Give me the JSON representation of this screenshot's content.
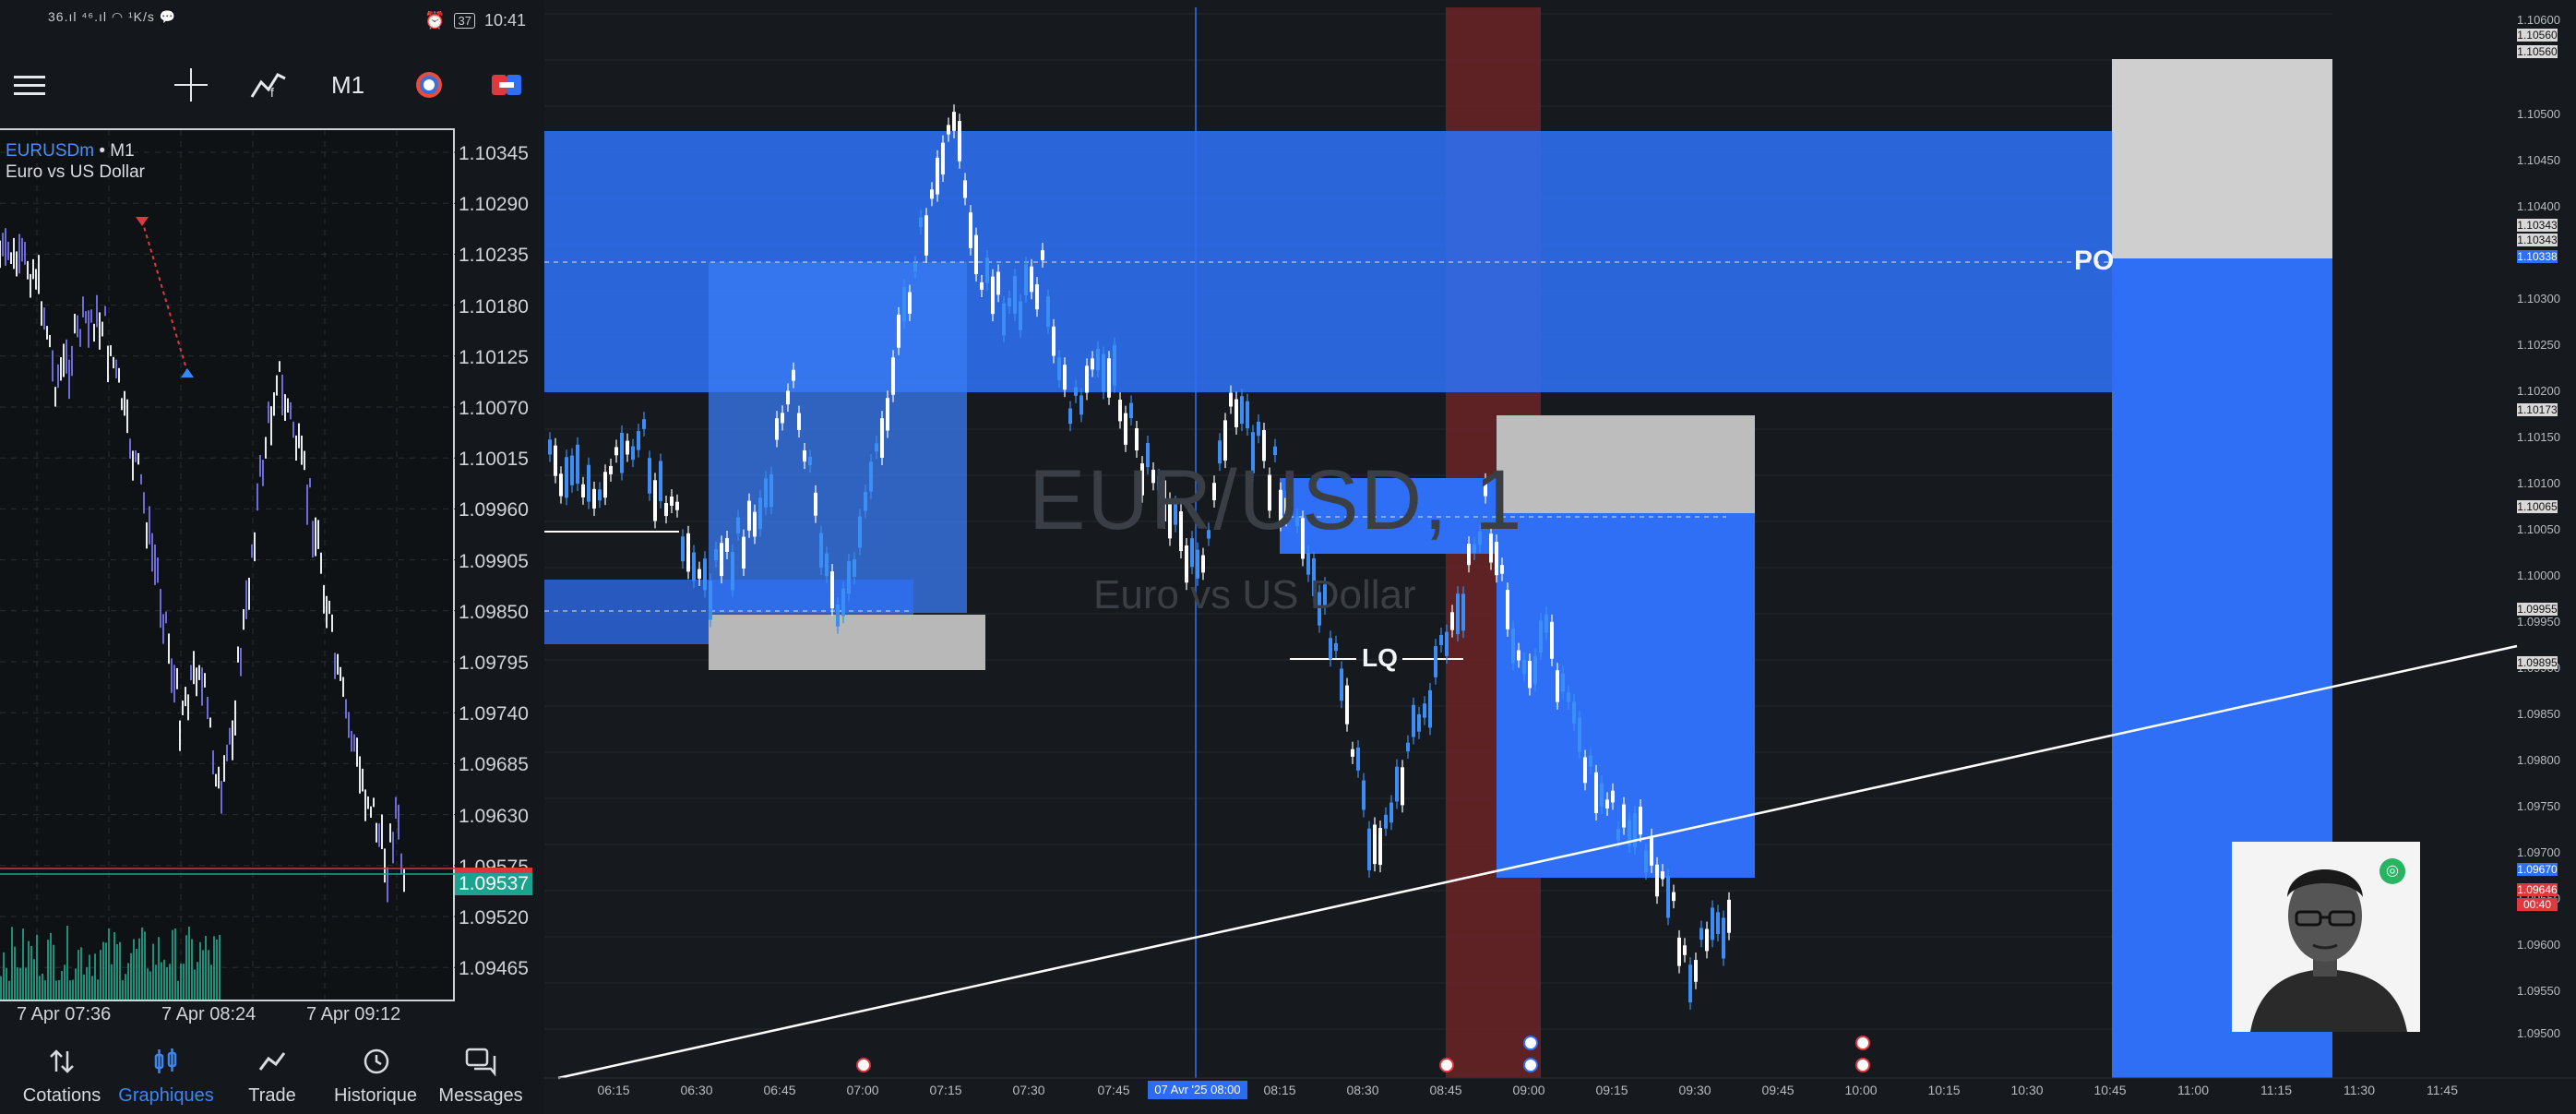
{
  "status": {
    "left_icons": "36.ıl ⁴⁶.ıl ◠ ¹K/s 💬",
    "battery": "37",
    "time": "10:41"
  },
  "toolbar": {
    "timeframe": "M1",
    "icons": [
      "menu-icon",
      "crosshair-icon",
      "indicator-icon",
      "objects-icon",
      "trade-icon"
    ]
  },
  "mini_chart": {
    "symbol": "EURUSDm",
    "separator": " • ",
    "timeframe": "M1",
    "description": "Euro vs US Dollar",
    "price_labels": [
      "1.10345",
      "1.10290",
      "1.10235",
      "1.10180",
      "1.10125",
      "1.10070",
      "1.10015",
      "1.09960",
      "1.09905",
      "1.09850",
      "1.09795",
      "1.09740",
      "1.09685",
      "1.09630",
      "1.09575",
      "1.09520",
      "1.09465"
    ],
    "last_price": "1.09537",
    "time_labels": [
      "7 Apr 07:36",
      "7 Apr 08:24",
      "7 Apr 09:12"
    ],
    "colors": {
      "last_price_bg": "#1aa38d",
      "bid_line": "#d9363e",
      "symbol": "#4c8ff0"
    }
  },
  "bottom_nav": [
    {
      "label": "Cotations",
      "icon": "swap-icon",
      "active": false
    },
    {
      "label": "Graphiques",
      "icon": "candles-icon",
      "active": true
    },
    {
      "label": "Trade",
      "icon": "trend-icon",
      "active": false
    },
    {
      "label": "Historique",
      "icon": "history-icon",
      "active": false
    },
    {
      "label": "Messages",
      "icon": "messages-icon",
      "active": false
    }
  ],
  "main_chart": {
    "watermark_symbol": "EUR/USD, 1",
    "watermark_name": "Euro vs US Dollar",
    "annotations": {
      "lq": "LQ",
      "po": "PO"
    },
    "price_labels": [
      "1.10600",
      "1.10500",
      "1.10450",
      "1.10400",
      "1.10300",
      "1.10250",
      "1.10200",
      "1.10150",
      "1.10100",
      "1.10050",
      "1.10000",
      "1.09950",
      "1.09900",
      "1.09850",
      "1.09800",
      "1.09750",
      "1.09700",
      "1.09650",
      "1.09600",
      "1.09550",
      "1.09500"
    ],
    "price_tags": [
      {
        "text": "1.10560",
        "color": "#d9d9d9"
      },
      {
        "text": "1.10560",
        "color": "#d9d9d9"
      },
      {
        "text": "1.10343",
        "color": "#d9d9d9"
      },
      {
        "text": "1.10343",
        "color": "#d9d9d9"
      },
      {
        "text": "1.10338",
        "color": "#2f6ff5"
      },
      {
        "text": "1.10173",
        "color": "#d9d9d9"
      },
      {
        "text": "1.10065",
        "color": "#d9d9d9"
      },
      {
        "text": "1.09955",
        "color": "#d9d9d9"
      },
      {
        "text": "1.09895",
        "color": "#d9d9d9"
      },
      {
        "text": "1.09670",
        "color": "#2f6ff5"
      },
      {
        "text": "1.09646",
        "color": "#e0383f"
      },
      {
        "text": "00:40",
        "color": "#e0383f"
      }
    ],
    "time_labels": [
      "06:15",
      "06:30",
      "06:45",
      "07:00",
      "07:15",
      "07:30",
      "07:45",
      "08:15",
      "08:30",
      "08:45",
      "09:00",
      "09:15",
      "09:30",
      "09:45",
      "10:00",
      "10:15",
      "10:30",
      "10:45",
      "11:00",
      "11:15",
      "11:30",
      "11:45"
    ],
    "crosshair_time": "07 Avr '25   08:00",
    "colors": {
      "zone": "#2f6ff5",
      "supply_zone": "#c9c9c9",
      "session_band": "#6b2326",
      "candle_up": "#3a8ef5",
      "candle_down": "#ffffff"
    }
  }
}
